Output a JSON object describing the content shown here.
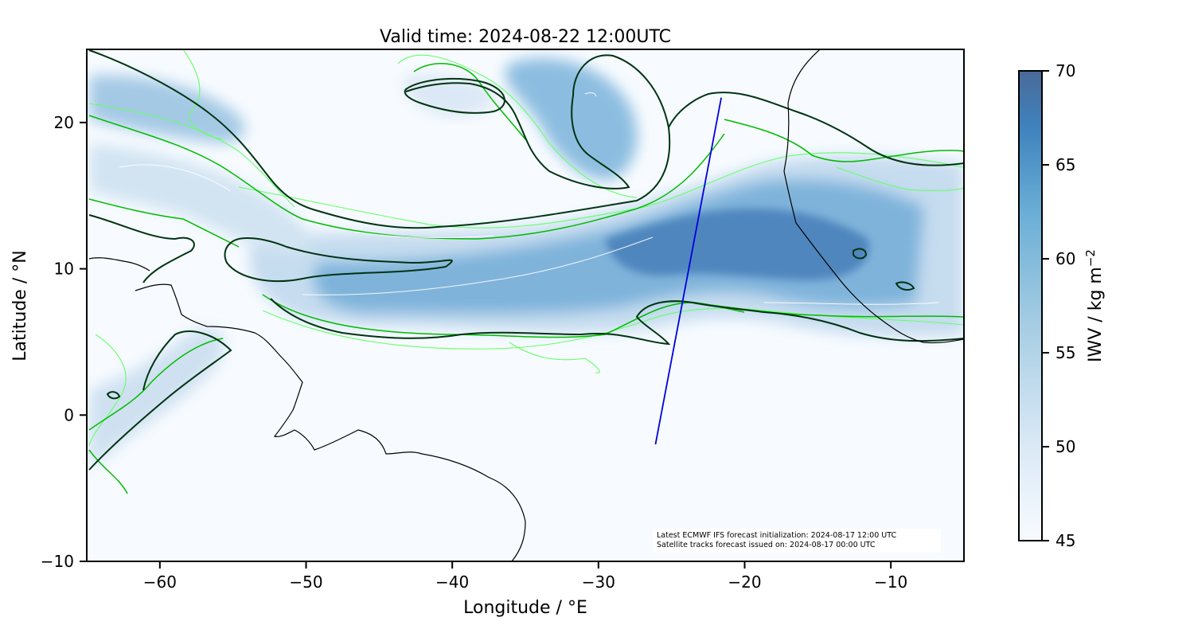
{
  "map": {
    "title": "Valid time: 2024-08-22 12:00UTC",
    "xlabel": "Longitude / °E",
    "ylabel": "Latitude / °N",
    "lon_range": [
      -65,
      -5
    ],
    "lat_range": [
      -10,
      25
    ],
    "x_ticks": [
      -60,
      -50,
      -40,
      -30,
      -20,
      -10
    ],
    "x_tick_labels": [
      "−60",
      "−50",
      "−40",
      "−30",
      "−20",
      "−10"
    ],
    "y_ticks": [
      20,
      10,
      0,
      -10
    ],
    "y_tick_labels": [
      "20",
      "10",
      "0",
      "−10"
    ],
    "notes": [
      "Latest ECMWF IFS forecast initialization: 2024-08-17 12:00 UTC",
      "Satellite tracks forecast issued on: 2024-08-17 00:00 UTC"
    ],
    "satellite_track": {
      "start": [
        -26.1,
        -2.0
      ],
      "end": [
        -21.6,
        21.7
      ],
      "color": "#0000dd"
    },
    "colorbar": {
      "label": "IWV / kg m",
      "label_superscript": "−2",
      "range": [
        45,
        70
      ],
      "ticks": [
        70,
        65,
        60,
        55,
        50,
        45
      ],
      "tick_labels": [
        "70",
        "65",
        "60",
        "55",
        "50",
        "45"
      ],
      "colors": [
        "#f7fbff",
        "#dbe9f6",
        "#a8cee4",
        "#6aaed6",
        "#3a7fbf",
        "#4a6a98"
      ]
    },
    "colors": {
      "contour_main": "#003311",
      "contour_green": "#00bb00",
      "contour_lightgreen": "#66ff66",
      "coastline": "#000000"
    }
  }
}
